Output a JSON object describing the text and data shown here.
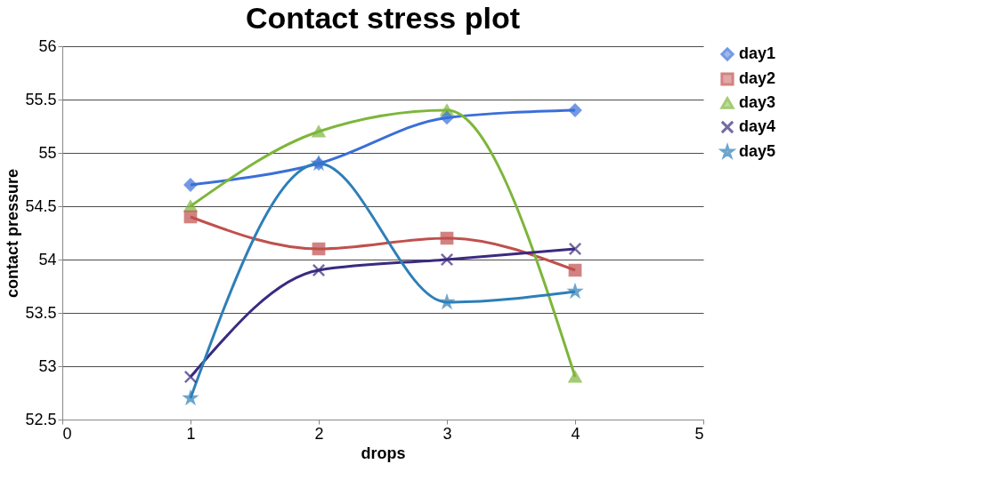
{
  "chart_data": {
    "type": "line",
    "title": "Contact stress plot",
    "xlabel": "drops",
    "ylabel": "contact pressure",
    "x": [
      1,
      2,
      3,
      4
    ],
    "xlim": [
      0,
      5
    ],
    "xticks": [
      0,
      1,
      2,
      3,
      4,
      5
    ],
    "ylim": [
      52.5,
      56
    ],
    "yticks": [
      52.5,
      53,
      53.5,
      54,
      54.5,
      55,
      55.5,
      56
    ],
    "grid": "y",
    "legend": "right",
    "series": [
      {
        "name": "day1",
        "color": "#3a6fd8",
        "marker": "diamond",
        "values": [
          54.7,
          54.9,
          55.33,
          55.4
        ]
      },
      {
        "name": "day2",
        "color": "#c0504d",
        "marker": "square",
        "values": [
          54.4,
          54.1,
          54.2,
          53.9
        ]
      },
      {
        "name": "day3",
        "color": "#7db63a",
        "marker": "triangle",
        "values": [
          54.5,
          55.2,
          55.4,
          52.9
        ]
      },
      {
        "name": "day4",
        "color": "#3b2a80",
        "marker": "cross",
        "values": [
          52.9,
          53.9,
          54.0,
          54.1
        ]
      },
      {
        "name": "day5",
        "color": "#2e7fb8",
        "marker": "star",
        "values": [
          52.7,
          54.9,
          53.6,
          53.7
        ]
      }
    ]
  }
}
